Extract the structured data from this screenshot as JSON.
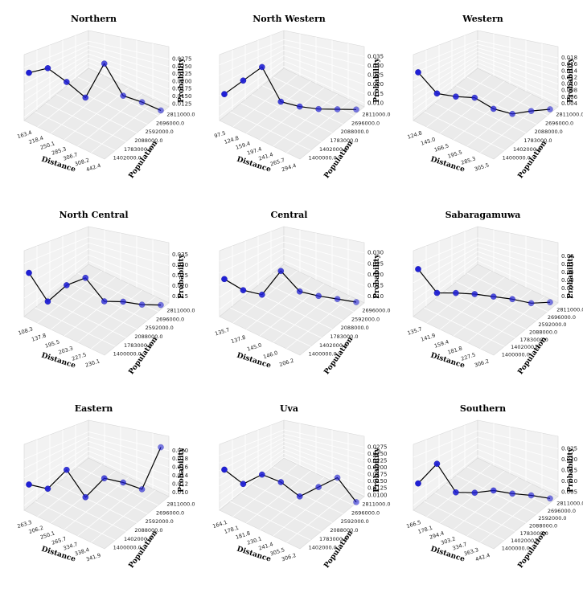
{
  "chart_data": [
    {
      "type": "line",
      "title": "Northern",
      "xlabel": "Distance",
      "ylabel": "Population",
      "zlabel": "Probability",
      "xticks": [
        "163.4",
        "218.4",
        "250.1",
        "285.3",
        "306.7",
        "308.2",
        "442.4"
      ],
      "yticks": [
        "1402000.0",
        "1783000.0",
        "2088000.0",
        "2592000.0",
        "2696000.0",
        "2811000.0"
      ],
      "zticks": [
        "0.0125",
        "0.0150",
        "0.0175",
        "0.0200",
        "0.0225",
        "0.0250",
        "0.0275"
      ],
      "zlim": [
        0.0115,
        0.029
      ],
      "points": [
        [
          163.4,
          2811000,
          0.0245
        ],
        [
          218.4,
          2811000,
          0.0255
        ],
        [
          250.1,
          2811000,
          0.0215
        ],
        [
          285.3,
          2811000,
          0.017
        ],
        [
          306.7,
          2811000,
          0.026
        ],
        [
          308.2,
          2811000,
          0.017
        ],
        [
          320,
          2811000,
          0.015
        ],
        [
          442.4,
          2811000,
          0.0125
        ]
      ]
    },
    {
      "type": "line",
      "title": "North Western",
      "xlabel": "Distance",
      "ylabel": "Population",
      "zlabel": "Probability",
      "xticks": [
        "97.5",
        "124.8",
        "159.4",
        "197.4",
        "241.4",
        "265.7",
        "294.4"
      ],
      "yticks": [
        "1400000.0",
        "1402000.0",
        "1783000.0",
        "2088000.0",
        "2696000.0",
        "2811000.0"
      ],
      "zticks": [
        "0.010",
        "0.015",
        "0.020",
        "0.025",
        "0.030",
        "0.035"
      ],
      "zlim": [
        0.008,
        0.036
      ],
      "points": [
        [
          97.5,
          2811000,
          0.0195
        ],
        [
          110,
          2811000,
          0.025
        ],
        [
          124.8,
          2811000,
          0.0305
        ],
        [
          197.4,
          2811000,
          0.015
        ],
        [
          205,
          2811000,
          0.0125
        ],
        [
          265.7,
          2811000,
          0.011
        ],
        [
          280,
          2811000,
          0.0105
        ],
        [
          294.4,
          2811000,
          0.01
        ]
      ]
    },
    {
      "type": "line",
      "title": "Western",
      "xlabel": "Distance",
      "ylabel": "Population",
      "zlabel": "Probability",
      "xticks": [
        "124.8",
        "145.0",
        "166.5",
        "195.5",
        "285.3",
        "305.5"
      ],
      "yticks": [
        "1400000.0",
        "1402000.0",
        "1783000.0",
        "2088000.0",
        "2696000.0",
        "2811000.0"
      ],
      "zticks": [
        "0.004",
        "0.006",
        "0.008",
        "0.010",
        "0.012",
        "0.014",
        "0.016",
        "0.018"
      ],
      "zlim": [
        0.003,
        0.019
      ],
      "points": [
        [
          124.8,
          2811000,
          0.015
        ],
        [
          145.0,
          2811000,
          0.0095
        ],
        [
          150,
          2811000,
          0.0085
        ],
        [
          166.5,
          2811000,
          0.008
        ],
        [
          195.5,
          2811000,
          0.005
        ],
        [
          270,
          2811000,
          0.0035
        ],
        [
          285.3,
          2811000,
          0.004
        ],
        [
          305.5,
          2811000,
          0.0042
        ]
      ]
    },
    {
      "type": "line",
      "title": "North Central",
      "xlabel": "Distance",
      "ylabel": "Population",
      "zlabel": "Probability",
      "xticks": [
        "108.3",
        "137.8",
        "195.5",
        "203.3",
        "227.5",
        "230.1"
      ],
      "yticks": [
        "1400000.0",
        "1783000.0",
        "2088000.0",
        "2592000.0",
        "2696000.0",
        "2811000.0"
      ],
      "zticks": [
        "0.015",
        "0.020",
        "0.025",
        "0.030",
        "0.035"
      ],
      "zlim": [
        0.012,
        0.037
      ],
      "points": [
        [
          108.3,
          2811000,
          0.029
        ],
        [
          115,
          2811000,
          0.0175
        ],
        [
          137.8,
          2811000,
          0.0235
        ],
        [
          170,
          2811000,
          0.026
        ],
        [
          185,
          2811000,
          0.0165
        ],
        [
          195.5,
          2811000,
          0.016
        ],
        [
          203.3,
          2811000,
          0.0145
        ],
        [
          230.1,
          2811000,
          0.014
        ]
      ]
    },
    {
      "type": "line",
      "title": "Central",
      "xlabel": "Distance",
      "ylabel": "Population",
      "zlabel": "Probability",
      "xticks": [
        "135.7",
        "137.8",
        "145.0",
        "146.0",
        "206.2"
      ],
      "yticks": [
        "1400000.0",
        "1402000.0",
        "1783000.0",
        "2088000.0",
        "2592000.0",
        "2696000.0"
      ],
      "zticks": [
        "0.010",
        "0.015",
        "0.020",
        "0.025",
        "0.030"
      ],
      "zlim": [
        0.007,
        0.031
      ],
      "points": [
        [
          135.7,
          2696000,
          0.021
        ],
        [
          137.8,
          2696000,
          0.0165
        ],
        [
          138.6,
          2696000,
          0.0145
        ],
        [
          140,
          2696000,
          0.023
        ],
        [
          141,
          2696000,
          0.015
        ],
        [
          145.0,
          2696000,
          0.013
        ],
        [
          146.0,
          2696000,
          0.0115
        ],
        [
          206.2,
          2696000,
          0.01
        ]
      ]
    },
    {
      "type": "line",
      "title": "Sabaragamuwa",
      "xlabel": "Distance",
      "ylabel": "Population",
      "zlabel": "Probability",
      "xticks": [
        "135.7",
        "141.9",
        "159.4",
        "181.8",
        "227.5",
        "306.2"
      ],
      "yticks": [
        "1400000.0",
        "1402000.0",
        "1783000.0",
        "2088000.0",
        "2592000.0",
        "2696000.0",
        "2811000.0"
      ],
      "zticks": [
        "0.01",
        "0.02",
        "0.03",
        "0.04",
        "0.05",
        "0.06"
      ],
      "zlim": [
        0.002,
        0.067
      ],
      "points": [
        [
          135.7,
          2811000,
          0.05
        ],
        [
          141.9,
          2811000,
          0.025
        ],
        [
          145,
          2811000,
          0.024
        ],
        [
          159.4,
          2811000,
          0.022
        ],
        [
          181.8,
          2811000,
          0.0185
        ],
        [
          200,
          2811000,
          0.015
        ],
        [
          227.5,
          2811000,
          0.01
        ],
        [
          306.2,
          2811000,
          0.01
        ]
      ]
    },
    {
      "type": "line",
      "title": "Eastern",
      "xlabel": "Distance",
      "ylabel": "Population",
      "zlabel": "Probability",
      "xticks": [
        "263.3",
        "206.2",
        "250.1",
        "265.7",
        "334.7",
        "338.4",
        "341.9"
      ],
      "yticks": [
        "1400000.0",
        "1402000.0",
        "2088000.0",
        "2592000.0",
        "2696000.0",
        "2811000.0"
      ],
      "zticks": [
        "0.010",
        "0.012",
        "0.014",
        "0.016",
        "0.018",
        "0.020"
      ],
      "zlim": [
        0.009,
        0.0215
      ],
      "points": [
        [
          1,
          2811000,
          0.014
        ],
        [
          2,
          2811000,
          0.013
        ],
        [
          3,
          2811000,
          0.0165
        ],
        [
          4,
          2811000,
          0.011
        ],
        [
          5,
          2811000,
          0.0145
        ],
        [
          6,
          2811000,
          0.0135
        ],
        [
          7,
          2811000,
          0.012
        ],
        [
          8,
          2811000,
          0.02
        ]
      ]
    },
    {
      "type": "line",
      "title": "Uva",
      "xlabel": "Distance",
      "ylabel": "Population",
      "zlabel": "Probability",
      "xticks": [
        "164.1",
        "178.1",
        "181.8",
        "230.1",
        "241.4",
        "305.5",
        "306.2"
      ],
      "yticks": [
        "1402000.0",
        "1783000.0",
        "2088000.0",
        "2592000.0",
        "2696000.0",
        "2811000.0"
      ],
      "zticks": [
        "0.0100",
        "0.0125",
        "0.0150",
        "0.0175",
        "0.0200",
        "0.0225",
        "0.0250",
        "0.0275"
      ],
      "zlim": [
        0.0095,
        0.0285
      ],
      "points": [
        [
          164.1,
          2811000,
          0.0215
        ],
        [
          178.1,
          2811000,
          0.017
        ],
        [
          181.8,
          2811000,
          0.0195
        ],
        [
          230.1,
          2811000,
          0.017
        ],
        [
          241.4,
          2811000,
          0.0125
        ],
        [
          270,
          2811000,
          0.015
        ],
        [
          305.5,
          2811000,
          0.0175
        ],
        [
          306.2,
          2811000,
          0.01
        ]
      ]
    },
    {
      "type": "line",
      "title": "Southern",
      "xlabel": "Distance",
      "ylabel": "Population",
      "zlabel": "Probability",
      "xticks": [
        "166.5",
        "178.1",
        "294.4",
        "303.2",
        "334.7",
        "363.3",
        "442.4"
      ],
      "yticks": [
        "1400000.0",
        "1402000.0",
        "1783000.0",
        "2088000.0",
        "2592000.0",
        "2696000.0",
        "2811000.0"
      ],
      "zticks": [
        "0.005",
        "0.010",
        "0.015",
        "0.020",
        "0.025"
      ],
      "zlim": [
        0.003,
        0.027
      ],
      "points": [
        [
          166.5,
          2811000,
          0.013
        ],
        [
          178.1,
          2811000,
          0.02
        ],
        [
          200,
          2811000,
          0.009
        ],
        [
          294.4,
          2811000,
          0.0085
        ],
        [
          303.2,
          2811000,
          0.009
        ],
        [
          334.7,
          2811000,
          0.0075
        ],
        [
          363.3,
          2811000,
          0.0065
        ],
        [
          442.4,
          2811000,
          0.005
        ]
      ]
    }
  ]
}
